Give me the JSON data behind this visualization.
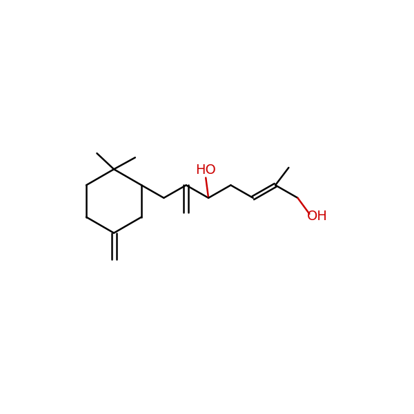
{
  "bg": "#ffffff",
  "bc": "#000000",
  "rc": "#cc0000",
  "lw": 1.8,
  "fs": 13
}
